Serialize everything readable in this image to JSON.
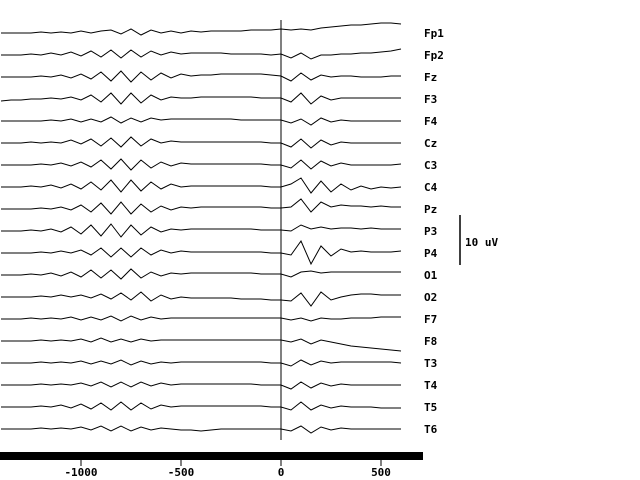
{
  "chart_data": {
    "type": "line",
    "color": "#000000",
    "x": [
      -1400,
      -1350,
      -1300,
      -1250,
      -1200,
      -1150,
      -1100,
      -1050,
      -1000,
      -950,
      -900,
      -850,
      -800,
      -750,
      -700,
      -650,
      -600,
      -550,
      -500,
      -450,
      -400,
      -350,
      -300,
      -250,
      -200,
      -150,
      -100,
      -50,
      0,
      50,
      100,
      150,
      200,
      250,
      300,
      350,
      400,
      450,
      500,
      550,
      600
    ],
    "xlim": [
      -1405,
      710
    ],
    "xticks": [
      -1000,
      -500,
      0,
      500
    ],
    "vline": 0,
    "scale_bar": {
      "value": 10,
      "label": "10 uV"
    },
    "series": [
      {
        "name": "Fp1",
        "values": [
          0,
          0,
          0,
          0,
          0.2,
          0,
          0.2,
          0,
          0.4,
          0,
          0.4,
          0.6,
          -0.2,
          0.8,
          -0.4,
          0.6,
          0,
          0.4,
          0,
          0.4,
          0.2,
          0.4,
          0.4,
          0.4,
          0.4,
          0.6,
          0.6,
          0.6,
          0.8,
          0.6,
          0.8,
          0.6,
          1,
          1.2,
          1.4,
          1.6,
          1.6,
          1.8,
          2,
          2,
          1.8
        ]
      },
      {
        "name": "Fp2",
        "values": [
          0,
          0,
          0,
          0.2,
          0,
          0.4,
          0,
          0.6,
          -0.2,
          0.8,
          -0.4,
          1,
          -0.6,
          1,
          -0.4,
          0.8,
          0,
          0.6,
          0.2,
          0.4,
          0.4,
          0.4,
          0.4,
          0.2,
          0.2,
          0.2,
          0.2,
          0,
          0.2,
          -0.6,
          0.4,
          -0.8,
          0,
          0,
          0.2,
          0.2,
          0.4,
          0.4,
          0.6,
          0.8,
          1.2
        ]
      },
      {
        "name": "Fz",
        "values": [
          0,
          0,
          0,
          0,
          0.2,
          0,
          0.4,
          -0.2,
          0.6,
          -0.4,
          1,
          -0.8,
          1.2,
          -1,
          1,
          -0.6,
          0.8,
          -0.2,
          0.6,
          0.2,
          0.4,
          0.4,
          0.6,
          0.6,
          0.6,
          0.6,
          0.6,
          0.4,
          0.2,
          -0.8,
          0.8,
          -0.6,
          0.4,
          0,
          0.2,
          0.2,
          0,
          0,
          0,
          0.2,
          0.2
        ]
      },
      {
        "name": "F3",
        "values": [
          -0.4,
          -0.2,
          -0.2,
          0,
          0,
          0.2,
          0,
          0.4,
          -0.2,
          0.8,
          -0.6,
          1.2,
          -1,
          1.2,
          -0.8,
          0.8,
          -0.2,
          0.4,
          0.2,
          0.2,
          0.4,
          0.4,
          0.4,
          0.4,
          0.4,
          0.4,
          0.2,
          0.2,
          0.2,
          -0.6,
          1.2,
          -1,
          0.6,
          -0.2,
          0.2,
          0.2,
          0.2,
          0.2,
          0.2,
          0.2,
          0.2
        ]
      },
      {
        "name": "F4",
        "values": [
          0,
          0,
          0,
          0,
          0,
          0.2,
          0,
          0.4,
          -0.2,
          0.4,
          -0.2,
          0.8,
          -0.4,
          0.6,
          -0.2,
          0.6,
          0.2,
          0.4,
          0.4,
          0.4,
          0.4,
          0.4,
          0.4,
          0.4,
          0.2,
          0.2,
          0.2,
          0.2,
          0.2,
          -0.4,
          0.4,
          -0.8,
          0.6,
          -0.2,
          0.2,
          0,
          0,
          0,
          0,
          0,
          0
        ]
      },
      {
        "name": "Cz",
        "values": [
          0,
          0,
          0,
          0.2,
          0,
          0.2,
          0,
          0.6,
          -0.2,
          0.8,
          -0.6,
          1,
          -0.8,
          1.2,
          -0.6,
          0.8,
          0,
          0.4,
          0.2,
          0.2,
          0.2,
          0.2,
          0.2,
          0.2,
          0.2,
          0.2,
          0.2,
          0,
          0,
          -0.8,
          0.8,
          -1,
          0.6,
          -0.4,
          0.2,
          0,
          0,
          0,
          0,
          0,
          0
        ]
      },
      {
        "name": "C3",
        "values": [
          0,
          0,
          0,
          0,
          0.2,
          0,
          0.4,
          -0.2,
          0.6,
          -0.4,
          1,
          -0.8,
          1.2,
          -1,
          1,
          -0.6,
          0.6,
          -0.2,
          0.4,
          0.2,
          0.2,
          0.2,
          0.2,
          0.2,
          0.2,
          0.2,
          0.2,
          0,
          0,
          -0.6,
          1,
          -0.8,
          0.8,
          -0.2,
          0.4,
          0,
          0,
          0,
          0,
          0,
          0.2
        ]
      },
      {
        "name": "C4",
        "values": [
          0,
          0,
          0,
          0.2,
          0,
          0.4,
          -0.2,
          0.6,
          -0.4,
          1,
          -0.6,
          1.4,
          -1,
          1.4,
          -0.8,
          1,
          -0.4,
          0.6,
          0,
          0.2,
          0.2,
          0.2,
          0.2,
          0.2,
          0.2,
          0.2,
          0.2,
          0,
          0,
          0.6,
          1.8,
          -1.2,
          1.2,
          -1,
          0.6,
          -0.6,
          0.2,
          -0.4,
          0,
          -0.2,
          0
        ]
      },
      {
        "name": "Pz",
        "values": [
          0,
          0,
          0,
          0,
          0.2,
          0,
          0.4,
          -0.2,
          0.8,
          -0.6,
          1.2,
          -1,
          1.4,
          -1,
          1,
          -0.6,
          0.6,
          -0.2,
          0.4,
          0.2,
          0.4,
          0.4,
          0.4,
          0.4,
          0.4,
          0.4,
          0.4,
          0.2,
          0.2,
          0.4,
          2,
          -0.6,
          1.4,
          0.4,
          0.8,
          0.6,
          0.6,
          0.4,
          0.6,
          0.4,
          0.4
        ]
      },
      {
        "name": "P3",
        "values": [
          0,
          0,
          0,
          0.2,
          0,
          0.4,
          -0.2,
          0.8,
          -0.6,
          1.2,
          -1,
          1.4,
          -1.2,
          1.2,
          -0.8,
          0.8,
          -0.2,
          0.4,
          0.2,
          0.4,
          0.4,
          0.4,
          0.4,
          0.4,
          0.4,
          0.4,
          0.2,
          0.2,
          0.2,
          0,
          1.2,
          0.4,
          0.8,
          0.4,
          0.6,
          0.6,
          0.4,
          0.6,
          0.4,
          0.4,
          0.4
        ]
      },
      {
        "name": "P4",
        "values": [
          0,
          0,
          0,
          0,
          0.2,
          0,
          0.4,
          0,
          0.6,
          -0.4,
          1,
          -0.8,
          1,
          -0.8,
          1,
          -0.4,
          0.6,
          0,
          0.4,
          0.2,
          0.2,
          0.2,
          0.2,
          0.2,
          0.2,
          0.2,
          0.2,
          0,
          0,
          -0.4,
          2.4,
          -2.2,
          1.4,
          -0.6,
          0.8,
          0.2,
          0.4,
          0.2,
          0.2,
          0.2,
          0.4
        ]
      },
      {
        "name": "O1",
        "values": [
          0,
          0,
          0,
          0.2,
          0,
          0.4,
          -0.2,
          0.6,
          -0.4,
          1,
          -0.6,
          1,
          -0.8,
          1.2,
          -0.6,
          0.6,
          -0.2,
          0.4,
          0.2,
          0.4,
          0.4,
          0.4,
          0.4,
          0.4,
          0.4,
          0.4,
          0.2,
          0.2,
          0.2,
          -0.4,
          0.6,
          0.8,
          0.4,
          0.6,
          0.6,
          0.6,
          0.6,
          0.6,
          0.6,
          0.6,
          0.6
        ]
      },
      {
        "name": "O2",
        "values": [
          0,
          0,
          0,
          0,
          0.2,
          0,
          0.4,
          0,
          0.4,
          -0.2,
          0.6,
          -0.4,
          0.8,
          -0.6,
          1,
          -0.8,
          0.4,
          -0.4,
          0,
          -0.2,
          -0.2,
          -0.2,
          -0.2,
          -0.2,
          -0.4,
          -0.4,
          -0.4,
          -0.6,
          -0.6,
          -0.8,
          0.8,
          -1.8,
          1,
          -0.6,
          0,
          0.4,
          0.6,
          0.6,
          0.4,
          0.4,
          0.4
        ]
      },
      {
        "name": "F7",
        "values": [
          0,
          0,
          0,
          0.2,
          0,
          0.2,
          0,
          0.4,
          -0.2,
          0.4,
          -0.2,
          0.6,
          -0.4,
          0.6,
          -0.2,
          0.4,
          0,
          0.2,
          0.2,
          0.2,
          0.2,
          0.2,
          0.2,
          0.2,
          0.2,
          0.2,
          0.2,
          0.2,
          0.2,
          -0.2,
          0.2,
          -0.4,
          0.2,
          0,
          0,
          0.2,
          0.2,
          0.2,
          0.4,
          0.4,
          0.4
        ]
      },
      {
        "name": "F8",
        "values": [
          0,
          0,
          0,
          0,
          0.2,
          0,
          0.2,
          0,
          0.4,
          -0.2,
          0.6,
          -0.2,
          0.4,
          -0.2,
          0.4,
          0,
          0.2,
          0.2,
          0.2,
          0.2,
          0.2,
          0.2,
          0.2,
          0.2,
          0.2,
          0.2,
          0.2,
          0.2,
          0.2,
          -0.2,
          0.4,
          -0.6,
          0.2,
          -0.2,
          -0.6,
          -1,
          -1.2,
          -1.4,
          -1.6,
          -1.8,
          -2
        ]
      },
      {
        "name": "T3",
        "values": [
          0,
          0,
          0,
          0,
          0.2,
          0,
          0.2,
          0,
          0.4,
          -0.2,
          0.4,
          -0.2,
          0.6,
          -0.4,
          0.4,
          -0.2,
          0.2,
          0,
          0.2,
          0.2,
          0.2,
          0.2,
          0.2,
          0.2,
          0.2,
          0.2,
          0.2,
          0,
          0,
          -0.6,
          0.6,
          -0.4,
          0.4,
          0,
          0.2,
          0.2,
          0.2,
          0.2,
          0.2,
          0.2,
          0
        ]
      },
      {
        "name": "T4",
        "values": [
          0,
          0,
          0,
          0,
          0.2,
          0,
          0.2,
          0,
          0.4,
          -0.2,
          0.6,
          -0.4,
          0.6,
          -0.4,
          0.6,
          -0.2,
          0.4,
          0,
          0.2,
          0.2,
          0.2,
          0.2,
          0.2,
          0.2,
          0.2,
          0.2,
          0,
          0,
          0,
          -0.8,
          0.6,
          -0.6,
          0.4,
          -0.2,
          0.2,
          0,
          0,
          0,
          0,
          0,
          0
        ]
      },
      {
        "name": "T5",
        "values": [
          0,
          0,
          0,
          0,
          0.2,
          0,
          0.4,
          -0.2,
          0.6,
          -0.4,
          0.8,
          -0.6,
          1,
          -0.6,
          0.8,
          -0.4,
          0.4,
          0,
          0.2,
          0.2,
          0.2,
          0.2,
          0.2,
          0.2,
          0.2,
          0.2,
          0.2,
          0,
          0,
          -0.6,
          1,
          -0.6,
          0.4,
          -0.2,
          0.2,
          0,
          0,
          0,
          -0.2,
          -0.2,
          -0.2
        ]
      },
      {
        "name": "T6",
        "values": [
          0,
          0,
          0,
          0,
          0.2,
          0,
          0.2,
          0,
          0.4,
          -0.2,
          0.6,
          -0.4,
          0.6,
          -0.4,
          0.4,
          -0.2,
          0.2,
          0,
          -0.2,
          -0.2,
          -0.4,
          -0.2,
          0,
          0,
          0,
          0,
          0,
          0,
          0,
          -0.4,
          0.6,
          -0.8,
          0.4,
          -0.2,
          0.2,
          0,
          0,
          0,
          0,
          0,
          0
        ]
      }
    ]
  }
}
